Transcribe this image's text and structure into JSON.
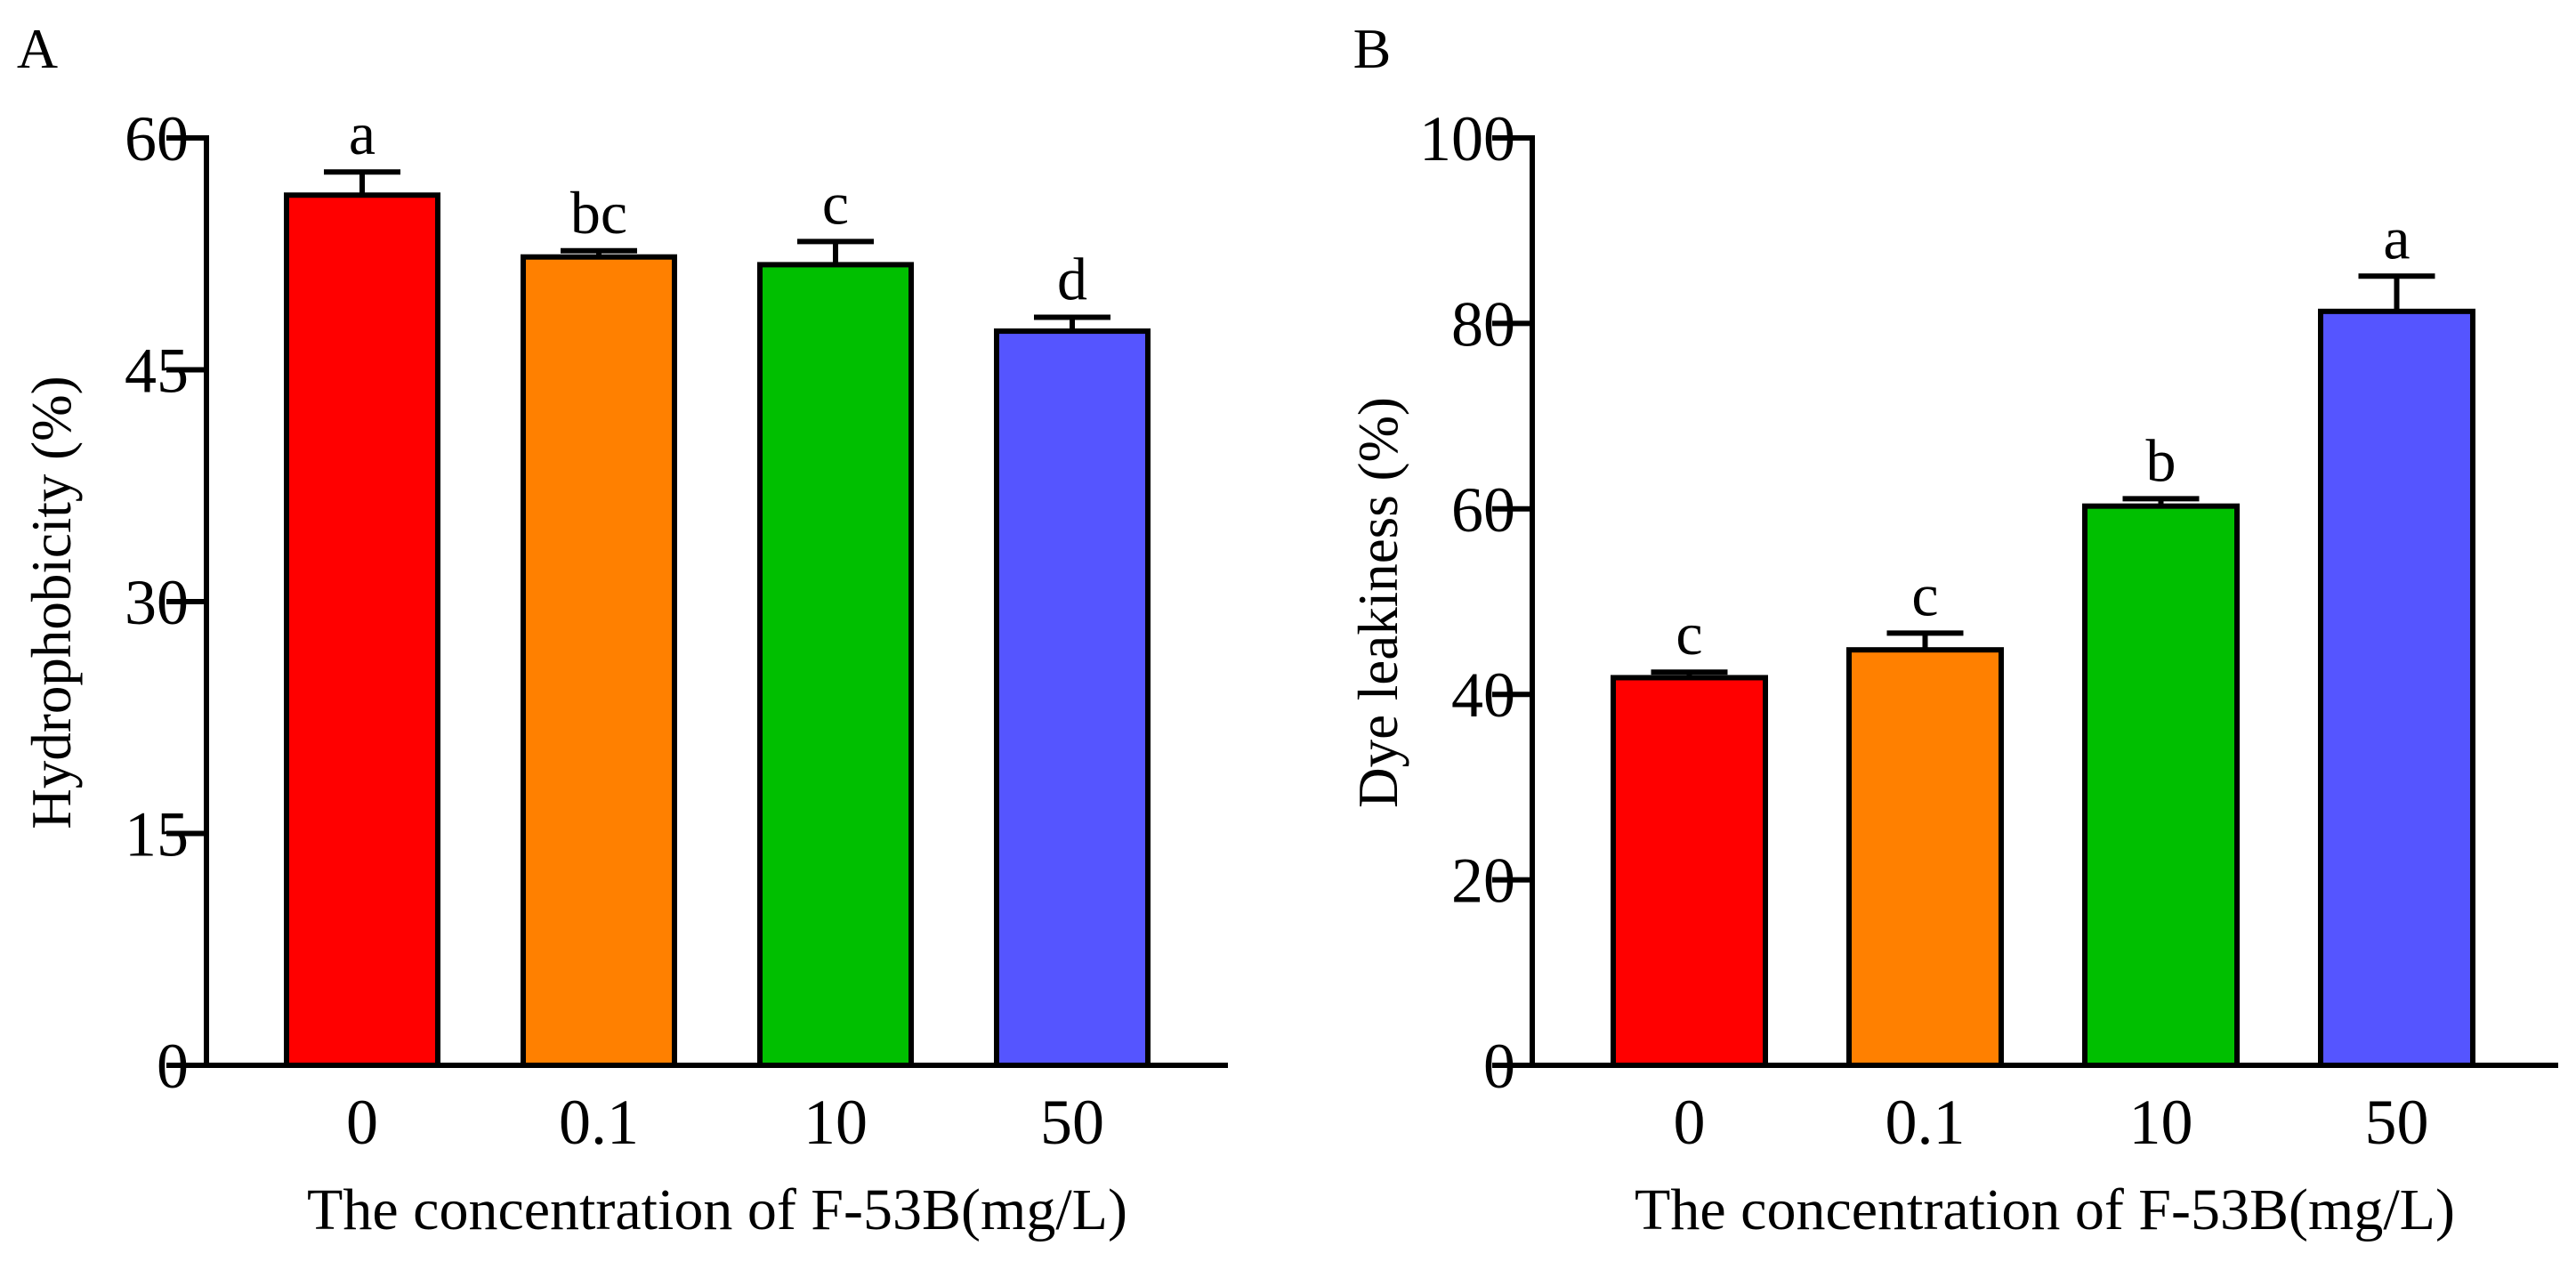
{
  "chart_data": [
    {
      "panel_label": "A",
      "type": "bar",
      "categories": [
        "0",
        "0.1",
        "10",
        "50"
      ],
      "values": [
        56.3,
        52.3,
        51.8,
        47.5
      ],
      "errors": [
        1.5,
        0.4,
        1.5,
        0.9
      ],
      "significance": [
        "a",
        "bc",
        "c",
        "d"
      ],
      "colors": [
        "#ff0000",
        "#ff8000",
        "#00bf00",
        "#5555ff"
      ],
      "xlabel": "The concentration of F-53B(mg/L)",
      "ylabel": "Hydrophobicity (%)",
      "ylim": [
        0,
        60
      ],
      "yticks": [
        0,
        15,
        30,
        45,
        60
      ],
      "grid": false
    },
    {
      "panel_label": "B",
      "type": "bar",
      "categories": [
        "0",
        "0.1",
        "10",
        "50"
      ],
      "values": [
        41.8,
        44.8,
        60.3,
        81.3
      ],
      "errors": [
        0.6,
        1.8,
        0.8,
        3.8
      ],
      "significance": [
        "c",
        "c",
        "b",
        "a"
      ],
      "colors": [
        "#ff0000",
        "#ff8000",
        "#00bf00",
        "#5555ff"
      ],
      "xlabel": "The concentration of F-53B(mg/L)",
      "ylabel": "Dye leakiness (%)",
      "ylim": [
        0,
        100
      ],
      "yticks": [
        0,
        20,
        40,
        60,
        80,
        100
      ],
      "grid": false
    }
  ]
}
